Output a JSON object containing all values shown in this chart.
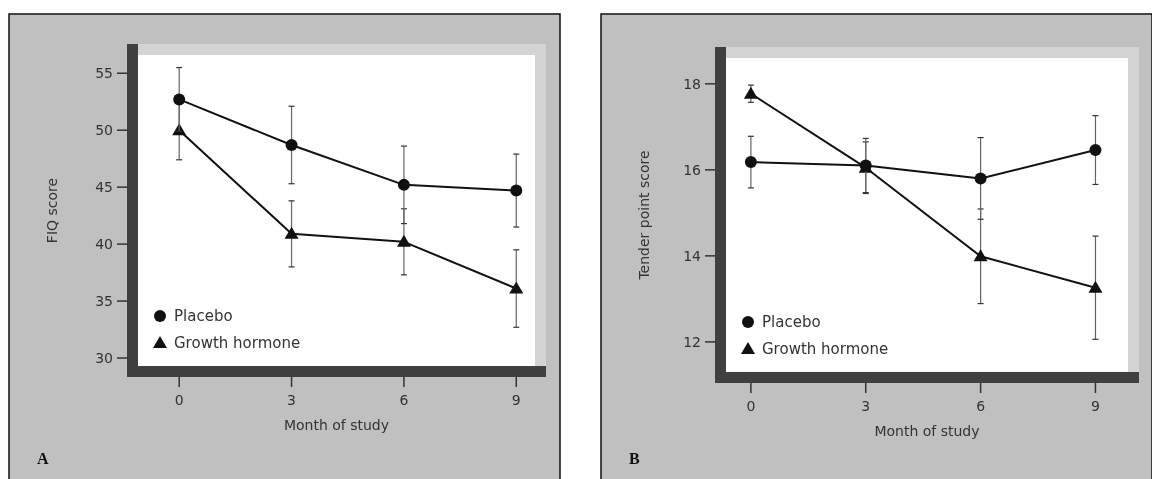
{
  "chart_data": [
    {
      "type": "line",
      "xlabel": "Month of study",
      "ylabel": "FIQ score",
      "annotations": [
        "A"
      ],
      "xlim": [
        -1.1,
        9.5
      ],
      "ylim": [
        29.3,
        56.6
      ],
      "xticks": [
        0,
        3,
        6,
        9
      ],
      "yticks": [
        30,
        35,
        40,
        45,
        50,
        55
      ],
      "legend": "bottom left",
      "grid": false,
      "line_style": "solid",
      "series": [
        {
          "name": "Placebo",
          "color": "#111111",
          "marker": "circle",
          "x": [
            0,
            3,
            6,
            9
          ],
          "values": [
            52.7,
            48.7,
            45.2,
            44.7
          ],
          "errors": [
            2.8,
            3.4,
            3.4,
            3.2
          ]
        },
        {
          "name": "Growth hormone",
          "color": "#111111",
          "marker": "triangle",
          "x": [
            0,
            3,
            6,
            9
          ],
          "values": [
            50.0,
            40.9,
            40.2,
            36.1
          ],
          "errors": [
            2.6,
            2.9,
            2.9,
            3.4
          ]
        }
      ]
    },
    {
      "type": "line",
      "xlabel": "Month of study",
      "ylabel": "Tender point score",
      "annotations": [
        "B"
      ],
      "xlim": [
        -0.65,
        9.85
      ],
      "ylim": [
        11.3,
        18.6
      ],
      "xticks": [
        0,
        3,
        6,
        9
      ],
      "yticks": [
        12,
        14,
        16,
        18
      ],
      "legend": "bottom left",
      "grid": false,
      "line_style": "solid",
      "series": [
        {
          "name": "Placebo",
          "color": "#111111",
          "marker": "circle",
          "x": [
            0,
            3,
            6,
            9
          ],
          "values": [
            16.18,
            16.1,
            15.8,
            16.46
          ],
          "errors": [
            0.6,
            0.63,
            0.95,
            0.8
          ]
        },
        {
          "name": "Growth hormone",
          "color": "#111111",
          "marker": "triangle",
          "x": [
            0,
            3,
            6,
            9
          ],
          "values": [
            17.77,
            16.05,
            13.99,
            13.26
          ],
          "errors": [
            0.2,
            0.6,
            1.1,
            1.2
          ]
        }
      ]
    }
  ]
}
